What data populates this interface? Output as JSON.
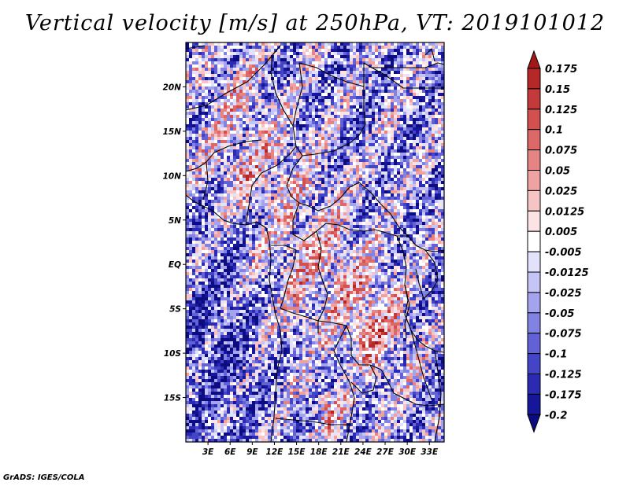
{
  "title": "Vertical velocity [m/s] at 250hPa, VT: 2019101012",
  "footer": "GrADS: IGES/COLA",
  "map": {
    "lon_range": [
      0,
      35
    ],
    "lat_range": [
      -20,
      25
    ],
    "lat_ticks": [
      {
        "value": 20,
        "label": "20N"
      },
      {
        "value": 15,
        "label": "15N"
      },
      {
        "value": 10,
        "label": "10N"
      },
      {
        "value": 5,
        "label": "5N"
      },
      {
        "value": 0,
        "label": "EQ"
      },
      {
        "value": -5,
        "label": "5S"
      },
      {
        "value": -10,
        "label": "10S"
      },
      {
        "value": -15,
        "label": "15S"
      }
    ],
    "lon_ticks": [
      {
        "value": 3,
        "label": "3E"
      },
      {
        "value": 6,
        "label": "6E"
      },
      {
        "value": 9,
        "label": "9E"
      },
      {
        "value": 12,
        "label": "12E"
      },
      {
        "value": 15,
        "label": "15E"
      },
      {
        "value": 18,
        "label": "18E"
      },
      {
        "value": 21,
        "label": "21E"
      },
      {
        "value": 24,
        "label": "24E"
      },
      {
        "value": 27,
        "label": "27E"
      },
      {
        "value": 30,
        "label": "30E"
      },
      {
        "value": 33,
        "label": "33E"
      }
    ]
  },
  "colorbar": {
    "labels": [
      "0.175",
      "0.15",
      "0.125",
      "0.1",
      "0.075",
      "0.05",
      "0.025",
      "0.0125",
      "0.005",
      "-0.005",
      "-0.0125",
      "-0.025",
      "-0.05",
      "-0.075",
      "-0.1",
      "-0.125",
      "-0.175",
      "-0.2"
    ],
    "colors": [
      "#a01818",
      "#b42828",
      "#c43a3a",
      "#d25050",
      "#dc6868",
      "#e68484",
      "#eea2a2",
      "#f6c4c4",
      "#fce4e4",
      "#ffffff",
      "#e2e2fc",
      "#c4c4f6",
      "#a4a4ee",
      "#8282e2",
      "#6262d6",
      "#4444c6",
      "#2a2ab2",
      "#16169a",
      "#0c0c80"
    ]
  }
}
